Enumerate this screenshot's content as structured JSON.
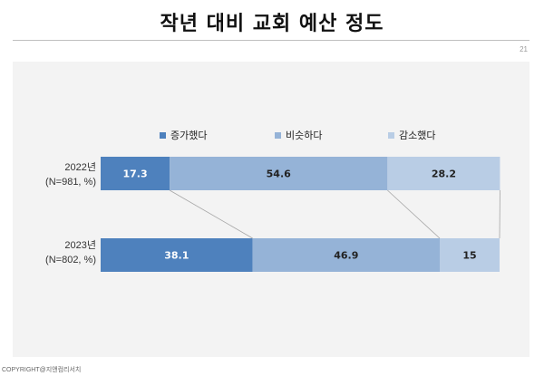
{
  "title": "작년 대비 교회 예산 정도",
  "page_number": "21",
  "copyright": "COPYRIGHT@지앤컴리서치",
  "chart_data": {
    "type": "bar",
    "orientation": "horizontal",
    "stacked": true,
    "categories": [
      {
        "year": "2022년",
        "note": "(N=981, %)"
      },
      {
        "year": "2023년",
        "note": "(N=802, %)"
      }
    ],
    "series": [
      {
        "name": "증가했다",
        "values": [
          17.3,
          38.1
        ],
        "color": "#4e81bd"
      },
      {
        "name": "비슷하다",
        "values": [
          54.6,
          46.9
        ],
        "color": "#95b3d7"
      },
      {
        "name": "감소했다",
        "values": [
          28.2,
          15
        ],
        "color": "#b9cde5"
      }
    ],
    "value_labels": [
      [
        "17.3",
        "54.6",
        "28.2"
      ],
      [
        "38.1",
        "46.9",
        "15"
      ]
    ],
    "label_colors": [
      "#ffffff",
      "#222222",
      "#222222"
    ],
    "connector_lines": true,
    "legend": "top-center",
    "xlim": [
      0,
      100
    ],
    "grid": false
  }
}
